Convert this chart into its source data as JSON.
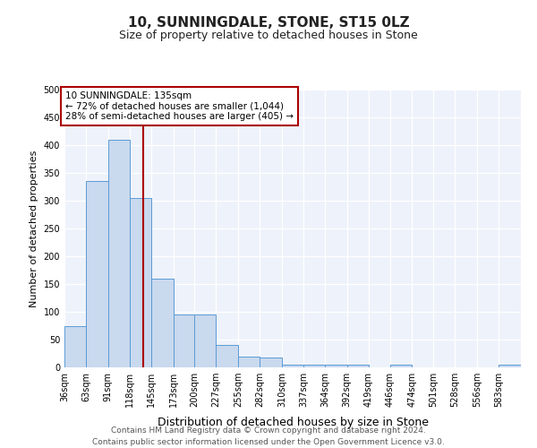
{
  "title": "10, SUNNINGDALE, STONE, ST15 0LZ",
  "subtitle": "Size of property relative to detached houses in Stone",
  "xlabel": "Distribution of detached houses by size in Stone",
  "ylabel": "Number of detached properties",
  "bin_edges": [
    36,
    63,
    91,
    118,
    145,
    173,
    200,
    227,
    255,
    282,
    310,
    337,
    364,
    392,
    419,
    446,
    474,
    501,
    528,
    556,
    583,
    611
  ],
  "bin_labels": [
    "36sqm",
    "63sqm",
    "91sqm",
    "118sqm",
    "145sqm",
    "173sqm",
    "200sqm",
    "227sqm",
    "255sqm",
    "282sqm",
    "310sqm",
    "337sqm",
    "364sqm",
    "392sqm",
    "419sqm",
    "446sqm",
    "474sqm",
    "501sqm",
    "528sqm",
    "556sqm",
    "583sqm"
  ],
  "counts": [
    75,
    335,
    410,
    305,
    160,
    95,
    95,
    40,
    20,
    18,
    5,
    5,
    5,
    5,
    0,
    5,
    0,
    0,
    0,
    0,
    5
  ],
  "bar_fill_color": "#c9d9ee",
  "bar_edge_color": "#5b9bd5",
  "property_line_x": 135,
  "property_line_color": "#aa0000",
  "annotation_text": "10 SUNNINGDALE: 135sqm\n← 72% of detached houses are smaller (1,044)\n28% of semi-detached houses are larger (405) →",
  "annotation_box_edge_color": "#aa0000",
  "ylim": [
    0,
    500
  ],
  "yticks": [
    0,
    50,
    100,
    150,
    200,
    250,
    300,
    350,
    400,
    450,
    500
  ],
  "bg_color": "#eef2fa",
  "footer": "Contains HM Land Registry data © Crown copyright and database right 2024.\nContains public sector information licensed under the Open Government Licence v3.0.",
  "title_fontsize": 11,
  "subtitle_fontsize": 9,
  "ylabel_fontsize": 8,
  "xlabel_fontsize": 9,
  "annotation_fontsize": 7.5,
  "footer_fontsize": 6.5,
  "tick_fontsize": 7
}
